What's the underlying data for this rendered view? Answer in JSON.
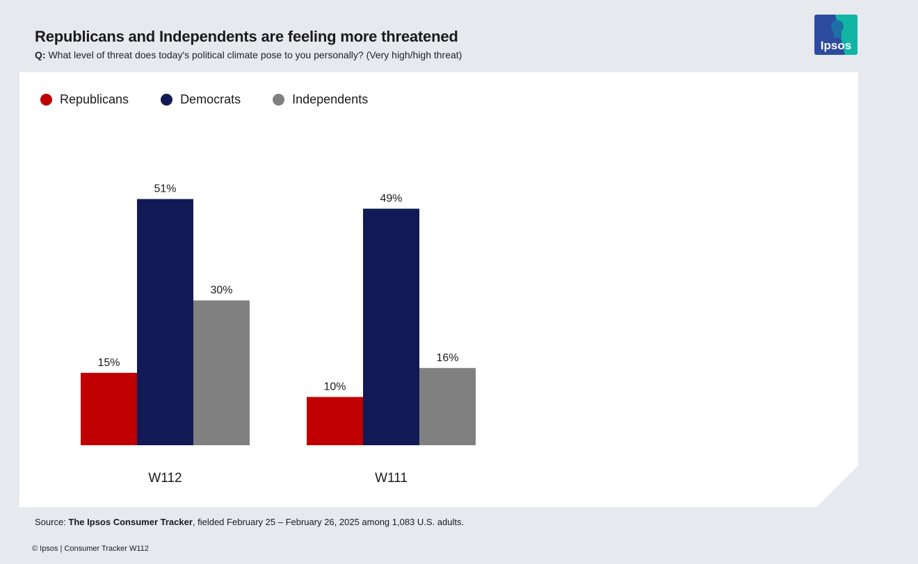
{
  "header": {
    "title": "Republicans and Independents are feeling more threatened",
    "question_prefix": "Q:",
    "question_text": "What level of threat does today's political climate pose to you personally? (Very high/high threat)"
  },
  "logo": {
    "text": "Ipsos"
  },
  "chart_data": {
    "type": "bar",
    "title": "Republicans and Independents are feeling more threatened",
    "xlabel": "",
    "ylabel": "",
    "ylim": [
      0,
      60
    ],
    "grid": false,
    "legend_position": "top-left",
    "categories": [
      "W112",
      "W111"
    ],
    "series": [
      {
        "name": "Republicans",
        "color": "#c00000",
        "values": [
          15,
          10
        ],
        "labels": [
          "15%",
          "10%"
        ]
      },
      {
        "name": "Democrats",
        "color": "#121a55",
        "values": [
          51,
          49
        ],
        "labels": [
          "51%",
          "49%"
        ]
      },
      {
        "name": "Independents",
        "color": "#808080",
        "values": [
          30,
          16
        ],
        "labels": [
          "30%",
          "16%"
        ]
      }
    ]
  },
  "footer": {
    "source_prefix": "Source: ",
    "source_name": "The Ipsos Consumer Tracker",
    "source_rest": ", fielded February 25 – February 26, 2025 among 1,083 U.S. adults.",
    "copyright": "© Ipsos | Consumer Tracker W112"
  }
}
